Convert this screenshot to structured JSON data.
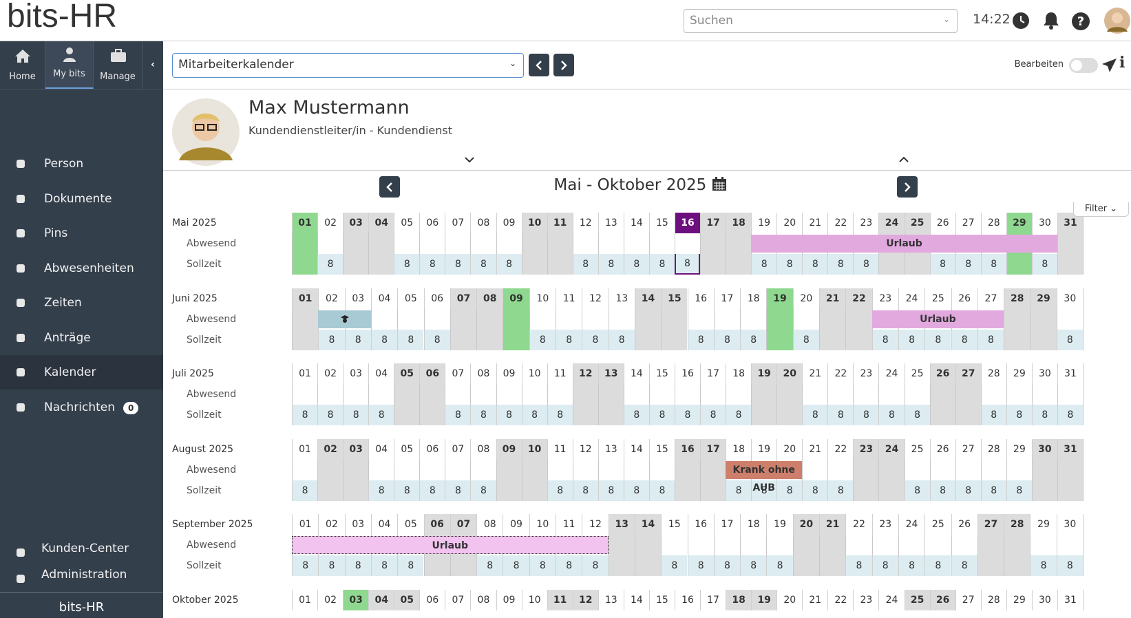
{
  "header": {
    "logo": "bits-HR",
    "search_placeholder": "Suchen",
    "time": "14:22"
  },
  "sidebar": {
    "tabs": [
      {
        "label": "Home"
      },
      {
        "label": "My bits"
      },
      {
        "label": "Manage"
      }
    ],
    "menu": [
      {
        "label": "Person"
      },
      {
        "label": "Dokumente"
      },
      {
        "label": "Pins"
      },
      {
        "label": "Abwesenheiten"
      },
      {
        "label": "Zeiten"
      },
      {
        "label": "Anträge"
      },
      {
        "label": "Kalender"
      },
      {
        "label": "Nachrichten",
        "badge": "0"
      }
    ],
    "bottom": [
      {
        "label": "Kunden-Center"
      },
      {
        "label": "Administration"
      }
    ],
    "footer": "bits-HR"
  },
  "toolbar": {
    "view": "Mitarbeiterkalender",
    "edit_label": "Bearbeiten"
  },
  "profile": {
    "name": "Max Mustermann",
    "role": "Kundendienstleiter/in - Kundendienst"
  },
  "calendar": {
    "title": "Mai - Oktober 2025",
    "filter": "Filter",
    "row_labels": [
      "Abwesend",
      "Sollzeit"
    ],
    "months": [
      {
        "label": "Mai 2025",
        "days": [
          "01",
          "02",
          "03",
          "04",
          "05",
          "06",
          "07",
          "08",
          "09",
          "10",
          "11",
          "12",
          "13",
          "14",
          "15",
          "16",
          "17",
          "18",
          "19",
          "20",
          "21",
          "22",
          "23",
          "24",
          "25",
          "26",
          "27",
          "28",
          "29",
          "30",
          "31"
        ],
        "status": [
          "holiday",
          "work",
          "off",
          "off",
          "work",
          "work",
          "work",
          "work",
          "work",
          "off",
          "off",
          "work",
          "work",
          "work",
          "work",
          "today",
          "off",
          "off",
          "work",
          "work",
          "work",
          "work",
          "work",
          "off",
          "off",
          "work",
          "work",
          "work",
          "holiday",
          "work",
          "off"
        ],
        "sollzeit": [
          null,
          8,
          null,
          null,
          8,
          8,
          8,
          8,
          8,
          null,
          null,
          8,
          8,
          8,
          8,
          8,
          null,
          null,
          8,
          8,
          8,
          8,
          8,
          null,
          null,
          8,
          8,
          8,
          null,
          8,
          null
        ],
        "absences": [
          {
            "label": "Urlaub",
            "from": 19,
            "to": 30,
            "kind": "vacation"
          }
        ]
      },
      {
        "label": "Juni 2025",
        "days": [
          "01",
          "02",
          "03",
          "04",
          "05",
          "06",
          "07",
          "08",
          "09",
          "10",
          "11",
          "12",
          "13",
          "14",
          "15",
          "16",
          "17",
          "18",
          "19",
          "20",
          "21",
          "22",
          "23",
          "24",
          "25",
          "26",
          "27",
          "28",
          "29",
          "30"
        ],
        "status": [
          "off",
          "work",
          "work",
          "work",
          "work",
          "work",
          "off",
          "off",
          "holiday",
          "work",
          "work",
          "work",
          "work",
          "off",
          "off",
          "work",
          "work",
          "work",
          "holiday",
          "work",
          "off",
          "off",
          "work",
          "work",
          "work",
          "work",
          "work",
          "off",
          "off",
          "work"
        ],
        "sollzeit": [
          null,
          8,
          8,
          8,
          8,
          8,
          null,
          null,
          null,
          8,
          8,
          8,
          8,
          null,
          null,
          8,
          8,
          8,
          null,
          8,
          null,
          null,
          8,
          8,
          8,
          8,
          8,
          null,
          null,
          8
        ],
        "absences": [
          {
            "from": 2,
            "to": 3,
            "kind": "training"
          },
          {
            "label": "Urlaub",
            "from": 23,
            "to": 27,
            "kind": "vacation"
          }
        ]
      },
      {
        "label": "Juli 2025",
        "days": [
          "01",
          "02",
          "03",
          "04",
          "05",
          "06",
          "07",
          "08",
          "09",
          "10",
          "11",
          "12",
          "13",
          "14",
          "15",
          "16",
          "17",
          "18",
          "19",
          "20",
          "21",
          "22",
          "23",
          "24",
          "25",
          "26",
          "27",
          "28",
          "29",
          "30",
          "31"
        ],
        "status": [
          "work",
          "work",
          "work",
          "work",
          "off",
          "off",
          "work",
          "work",
          "work",
          "work",
          "work",
          "off",
          "off",
          "work",
          "work",
          "work",
          "work",
          "work",
          "off",
          "off",
          "work",
          "work",
          "work",
          "work",
          "work",
          "off",
          "off",
          "work",
          "work",
          "work",
          "work"
        ],
        "sollzeit": [
          8,
          8,
          8,
          8,
          null,
          null,
          8,
          8,
          8,
          8,
          8,
          null,
          null,
          8,
          8,
          8,
          8,
          8,
          null,
          null,
          8,
          8,
          8,
          8,
          8,
          null,
          null,
          8,
          8,
          8,
          8
        ],
        "absences": []
      },
      {
        "label": "August 2025",
        "days": [
          "01",
          "02",
          "03",
          "04",
          "05",
          "06",
          "07",
          "08",
          "09",
          "10",
          "11",
          "12",
          "13",
          "14",
          "15",
          "16",
          "17",
          "18",
          "19",
          "20",
          "21",
          "22",
          "23",
          "24",
          "25",
          "26",
          "27",
          "28",
          "29",
          "30",
          "31"
        ],
        "status": [
          "work",
          "off",
          "off",
          "work",
          "work",
          "work",
          "work",
          "work",
          "off",
          "off",
          "work",
          "work",
          "work",
          "work",
          "work",
          "off",
          "off",
          "work",
          "work",
          "work",
          "work",
          "work",
          "off",
          "off",
          "work",
          "work",
          "work",
          "work",
          "work",
          "off",
          "off"
        ],
        "sollzeit": [
          8,
          null,
          null,
          8,
          8,
          8,
          8,
          8,
          null,
          null,
          8,
          8,
          8,
          8,
          8,
          null,
          null,
          8,
          8,
          8,
          8,
          8,
          null,
          null,
          8,
          8,
          8,
          8,
          8,
          null,
          null
        ],
        "absences": [
          {
            "label": "Krank ohne AUB",
            "from": 18,
            "to": 20,
            "kind": "sick"
          }
        ]
      },
      {
        "label": "September 2025",
        "days": [
          "01",
          "02",
          "03",
          "04",
          "05",
          "06",
          "07",
          "08",
          "09",
          "10",
          "11",
          "12",
          "13",
          "14",
          "15",
          "16",
          "17",
          "18",
          "19",
          "20",
          "21",
          "22",
          "23",
          "24",
          "25",
          "26",
          "27",
          "28",
          "29",
          "30"
        ],
        "status": [
          "work",
          "work",
          "work",
          "work",
          "work",
          "off",
          "off",
          "work",
          "work",
          "work",
          "work",
          "work",
          "off",
          "off",
          "work",
          "work",
          "work",
          "work",
          "work",
          "off",
          "off",
          "work",
          "work",
          "work",
          "work",
          "work",
          "off",
          "off",
          "work",
          "work"
        ],
        "sollzeit": [
          8,
          8,
          8,
          8,
          8,
          null,
          null,
          8,
          8,
          8,
          8,
          8,
          null,
          null,
          8,
          8,
          8,
          8,
          8,
          null,
          null,
          8,
          8,
          8,
          8,
          8,
          null,
          null,
          8,
          8
        ],
        "absences": [
          {
            "label": "Urlaub",
            "from": 1,
            "to": 12,
            "kind": "pending"
          }
        ]
      },
      {
        "label": "Oktober 2025",
        "days": [
          "01",
          "02",
          "03",
          "04",
          "05",
          "06",
          "07",
          "08",
          "09",
          "10",
          "11",
          "12",
          "13",
          "14",
          "15",
          "16",
          "17",
          "18",
          "19",
          "20",
          "21",
          "22",
          "23",
          "24",
          "25",
          "26",
          "27",
          "28",
          "29",
          "30",
          "31"
        ],
        "status": [
          "work",
          "work",
          "holiday",
          "off",
          "off",
          "work",
          "work",
          "work",
          "work",
          "work",
          "off",
          "off",
          "work",
          "work",
          "work",
          "work",
          "work",
          "off",
          "off",
          "work",
          "work",
          "work",
          "work",
          "work",
          "off",
          "off",
          "work",
          "work",
          "work",
          "work",
          "work"
        ]
      }
    ]
  }
}
